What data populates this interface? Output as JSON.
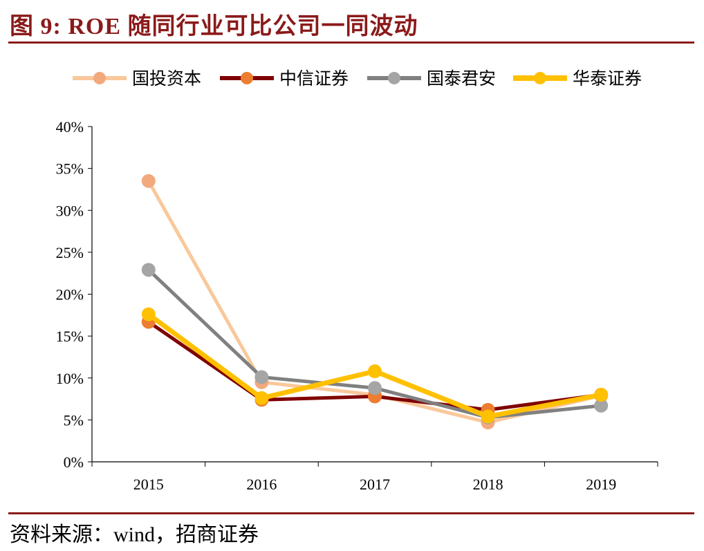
{
  "title": "图 9:  ROE 随同行业可比公司一同波动",
  "source": "资料来源：wind，招商证券",
  "chart_data": {
    "type": "line",
    "title": "",
    "xlabel": "",
    "ylabel": "",
    "categories": [
      "2015",
      "2016",
      "2017",
      "2018",
      "2019"
    ],
    "ylim": [
      0,
      40
    ],
    "yticks": [
      "0%",
      "5%",
      "10%",
      "15%",
      "20%",
      "25%",
      "30%",
      "35%",
      "40%"
    ],
    "grid": false,
    "legend_position": "top",
    "series": [
      {
        "name": "国投资本",
        "color": "#f9c89b",
        "marker": "#f2a97e",
        "values": [
          33.5,
          9.5,
          8.0,
          4.7,
          7.9
        ]
      },
      {
        "name": "中信证券",
        "color": "#7f0000",
        "marker": "#ed7d31",
        "values": [
          16.7,
          7.4,
          7.8,
          6.2,
          8.0
        ]
      },
      {
        "name": "国泰君安",
        "color": "#808080",
        "marker": "#a5a5a5",
        "values": [
          22.9,
          10.1,
          8.8,
          5.3,
          6.7
        ]
      },
      {
        "name": "华泰证券",
        "color": "#ffc000",
        "marker": "#ffc000",
        "values": [
          17.6,
          7.6,
          10.8,
          5.4,
          8.0
        ]
      }
    ]
  }
}
